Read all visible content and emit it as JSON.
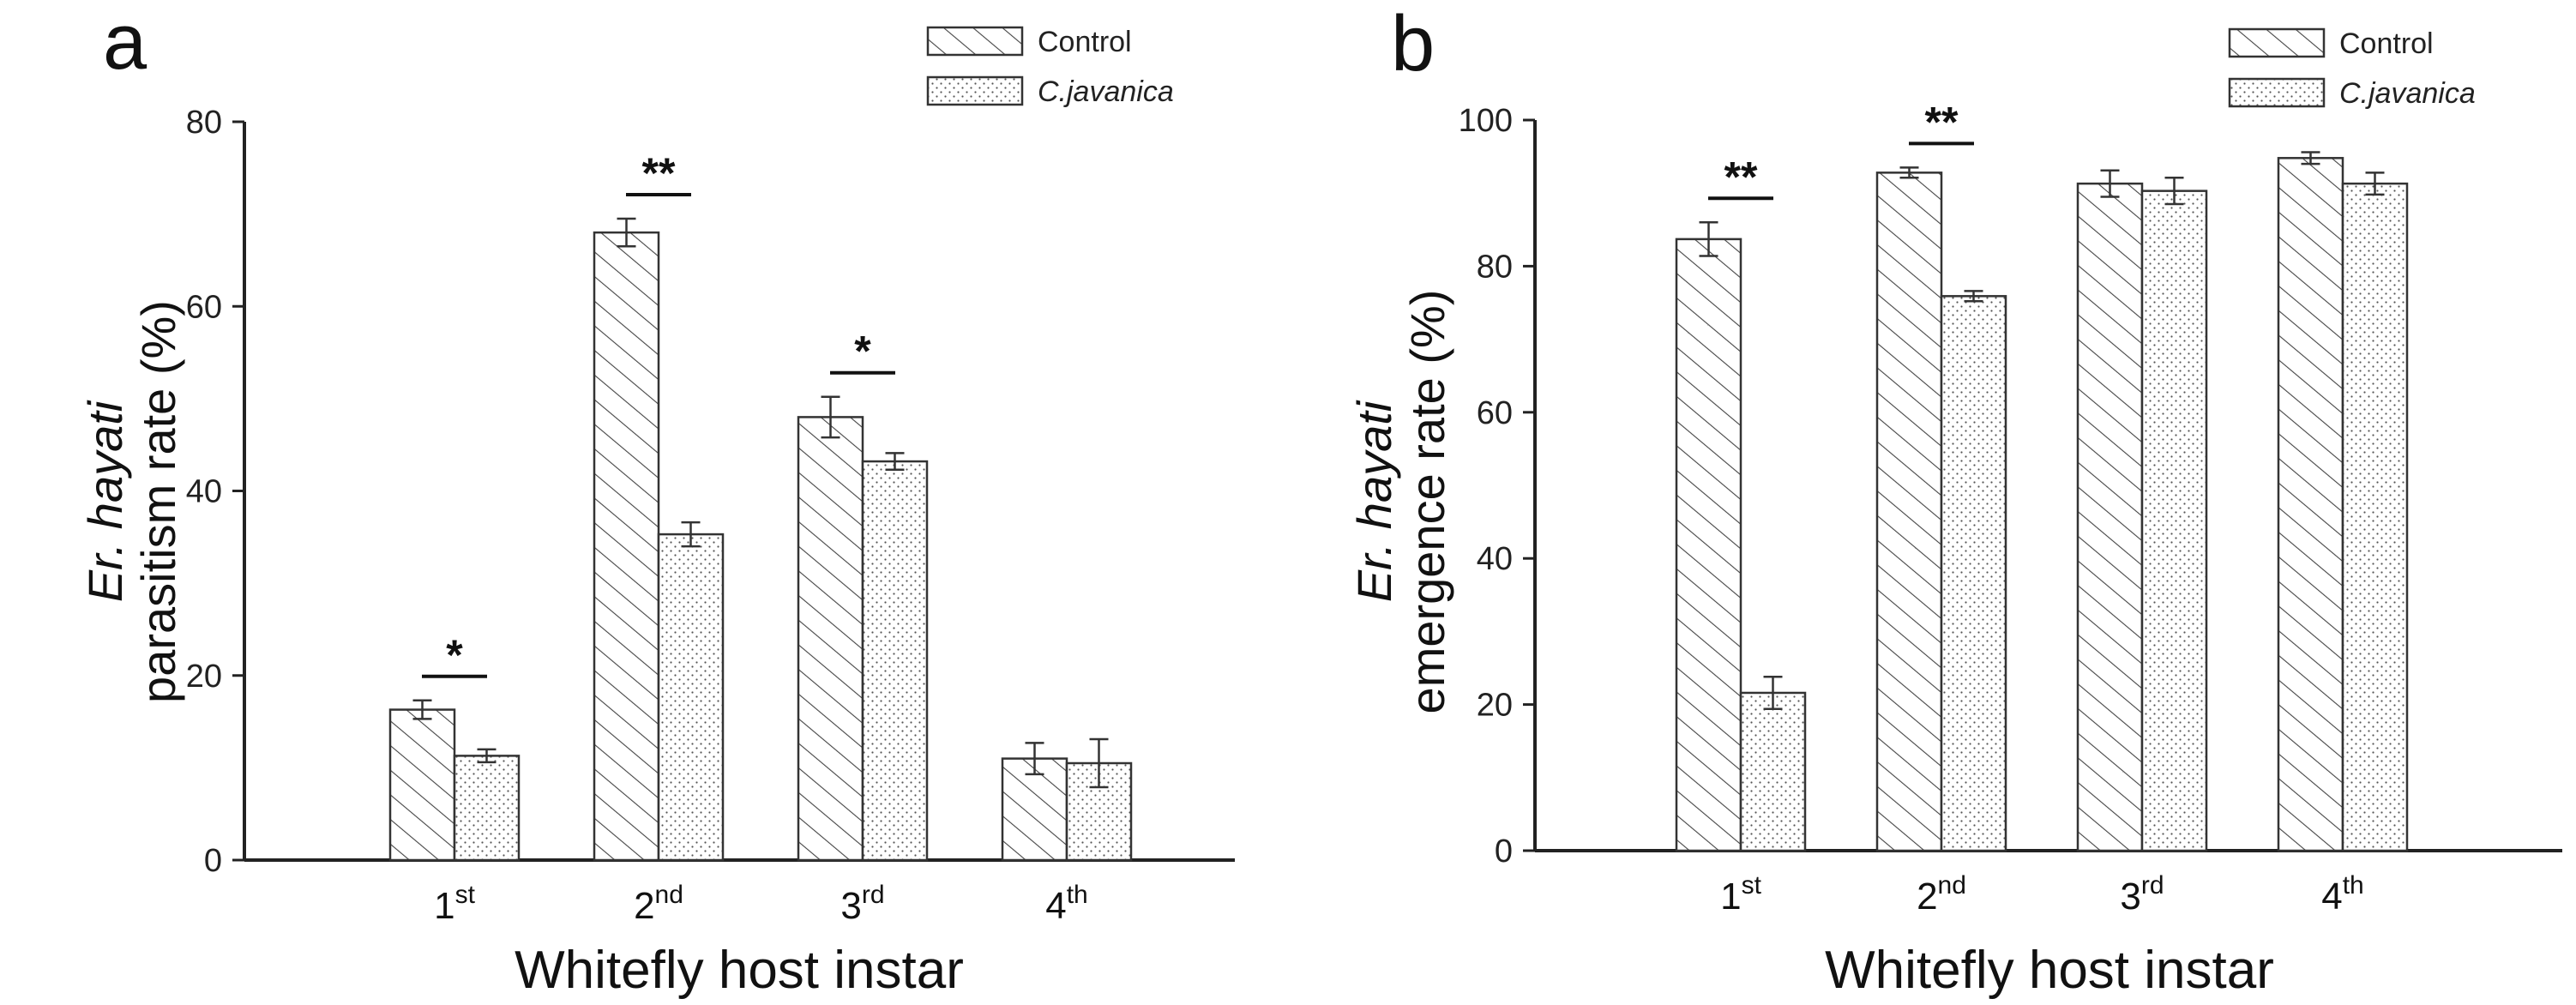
{
  "chart_data": [
    {
      "type": "bar",
      "panel_label": "a",
      "ylabel_italic": "Er. hayati",
      "ylabel": "parasitism rate (%)",
      "xlabel": "Whitefly host instar",
      "categories": [
        {
          "base": "1",
          "sup": "st"
        },
        {
          "base": "2",
          "sup": "nd"
        },
        {
          "base": "3",
          "sup": "rd"
        },
        {
          "base": "4",
          "sup": "th"
        }
      ],
      "ylim": [
        0,
        80
      ],
      "yticks": [
        0,
        20,
        40,
        60,
        80
      ],
      "series": [
        {
          "name": "Control",
          "pattern": "hatch",
          "values": [
            16.3,
            68.0,
            48.0,
            11.0
          ],
          "errors": [
            1.0,
            1.5,
            2.2,
            1.7
          ]
        },
        {
          "name": "C.javanica",
          "pattern": "dots",
          "values": [
            11.3,
            35.3,
            43.2,
            10.5
          ],
          "errors": [
            0.7,
            1.3,
            0.9,
            2.6
          ]
        }
      ],
      "significance": [
        "*",
        "**",
        "*",
        ""
      ]
    },
    {
      "type": "bar",
      "panel_label": "b",
      "ylabel_italic": "Er. hayati",
      "ylabel": "emergence rate (%)",
      "xlabel": "Whitefly host instar",
      "categories": [
        {
          "base": "1",
          "sup": "st"
        },
        {
          "base": "2",
          "sup": "nd"
        },
        {
          "base": "3",
          "sup": "rd"
        },
        {
          "base": "4",
          "sup": "th"
        }
      ],
      "ylim": [
        0,
        100
      ],
      "yticks": [
        0,
        20,
        40,
        60,
        80,
        100
      ],
      "series": [
        {
          "name": "Control",
          "pattern": "hatch",
          "values": [
            83.7,
            92.8,
            91.3,
            94.8
          ],
          "errors": [
            2.3,
            0.7,
            1.8,
            0.8
          ]
        },
        {
          "name": "C.javanica",
          "pattern": "dots",
          "values": [
            21.6,
            75.9,
            90.3,
            91.3
          ],
          "errors": [
            2.2,
            0.7,
            1.8,
            1.5
          ]
        }
      ],
      "significance": [
        "**",
        "**",
        "",
        ""
      ]
    }
  ]
}
